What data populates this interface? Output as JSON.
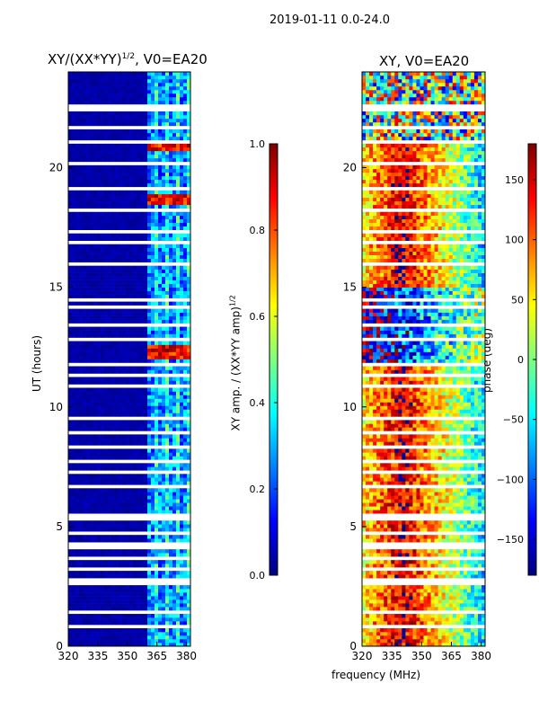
{
  "figure_title": "2019-01-11 0.0-24.0",
  "colors": {
    "jet": [
      "#00007f",
      "#0000ff",
      "#007fff",
      "#00ffff",
      "#7fff7f",
      "#ffff00",
      "#ff7f00",
      "#ff0000",
      "#7f0000"
    ],
    "gap": "#ffffff"
  },
  "chart_data": [
    {
      "type": "heatmap",
      "panel": "amplitude",
      "title": "XY/(XX*YY)",
      "title_superscript": "1/2",
      "title_suffix": ", V0=EA20",
      "xlabel": "frequency (MHz)",
      "ylabel": "UT (hours)",
      "xlim": [
        320,
        382
      ],
      "ylim": [
        0,
        24
      ],
      "xticks": [
        "320",
        "335",
        "350",
        "365",
        "380"
      ],
      "xtick_values": [
        320,
        335,
        350,
        365,
        380
      ],
      "yticks": [
        "0",
        "5",
        "10",
        "15",
        "20"
      ],
      "ytick_values": [
        0,
        5,
        10,
        15,
        20
      ],
      "colorbar": {
        "label": "XY amp. / (XX*YY amp)",
        "label_superscript": "1/2",
        "range": [
          0,
          1
        ],
        "ticks": [
          "0.0",
          "0.2",
          "0.4",
          "0.6",
          "0.8",
          "1.0"
        ],
        "tick_values": [
          0,
          0.2,
          0.4,
          0.6,
          0.8,
          1.0
        ]
      },
      "bright_band_mhz": [
        360,
        382
      ],
      "high_amplitude_events_ut": [
        12.3,
        20.9,
        18.7
      ],
      "flagged_ut_intervals": [
        [
          0.8,
          0.9
        ],
        [
          1.4,
          1.5
        ],
        [
          2.6,
          2.8
        ],
        [
          3.2,
          3.3
        ],
        [
          3.6,
          3.7
        ],
        [
          4.1,
          4.3
        ],
        [
          4.6,
          4.8
        ],
        [
          5.2,
          5.6
        ],
        [
          6.1,
          6.2
        ],
        [
          6.6,
          6.8
        ],
        [
          7.2,
          7.3
        ],
        [
          7.6,
          7.8
        ],
        [
          8.3,
          8.4
        ],
        [
          8.9,
          9.0
        ],
        [
          9.5,
          9.6
        ],
        [
          10.0,
          10.1
        ],
        [
          10.8,
          10.9
        ],
        [
          11.3,
          11.4
        ],
        [
          11.7,
          11.8
        ],
        [
          12.8,
          12.9
        ],
        [
          13.4,
          13.5
        ],
        [
          14.1,
          14.2
        ],
        [
          14.4,
          14.6
        ],
        [
          15.1,
          15.2
        ],
        [
          15.9,
          16.0
        ],
        [
          16.3,
          16.4
        ],
        [
          16.8,
          16.9
        ],
        [
          17.3,
          17.4
        ],
        [
          17.8,
          17.9
        ],
        [
          18.2,
          18.3
        ],
        [
          19.1,
          19.2
        ],
        [
          19.6,
          19.7
        ],
        [
          20.1,
          20.2
        ],
        [
          20.5,
          20.6
        ],
        [
          21.0,
          21.1
        ],
        [
          21.6,
          21.7
        ],
        [
          22.3,
          22.6
        ]
      ]
    },
    {
      "type": "heatmap",
      "panel": "phase",
      "title": "XY, V0=EA20",
      "xlabel": "frequency (MHz)",
      "ylabel": "",
      "xlim": [
        320,
        382
      ],
      "ylim": [
        0,
        24
      ],
      "xticks": [
        "320",
        "335",
        "350",
        "365",
        "380"
      ],
      "xtick_values": [
        320,
        335,
        350,
        365,
        380
      ],
      "yticks": [
        "0",
        "5",
        "10",
        "15",
        "20"
      ],
      "ytick_values": [
        0,
        5,
        10,
        15,
        20
      ],
      "colorbar": {
        "label": "phase (deg)",
        "range": [
          -180,
          180
        ],
        "ticks": [
          "−150",
          "−100",
          "−50",
          "0",
          "50",
          "100",
          "150"
        ],
        "tick_values": [
          -150,
          -100,
          -50,
          0,
          50,
          100,
          150
        ]
      },
      "dominant_phase_deg_at_335_mhz": 150,
      "flagged_ut_intervals": [
        [
          0.8,
          0.9
        ],
        [
          1.4,
          1.5
        ],
        [
          2.6,
          2.8
        ],
        [
          3.2,
          3.3
        ],
        [
          3.6,
          3.7
        ],
        [
          4.1,
          4.3
        ],
        [
          4.6,
          4.8
        ],
        [
          5.2,
          5.6
        ],
        [
          6.1,
          6.2
        ],
        [
          6.6,
          6.8
        ],
        [
          7.2,
          7.3
        ],
        [
          7.6,
          7.8
        ],
        [
          8.3,
          8.4
        ],
        [
          8.9,
          9.0
        ],
        [
          9.5,
          9.6
        ],
        [
          10.0,
          10.1
        ],
        [
          10.8,
          10.9
        ],
        [
          11.3,
          11.4
        ],
        [
          11.7,
          11.8
        ],
        [
          12.8,
          12.9
        ],
        [
          13.4,
          13.5
        ],
        [
          14.1,
          14.2
        ],
        [
          14.4,
          14.6
        ],
        [
          15.1,
          15.2
        ],
        [
          15.9,
          16.0
        ],
        [
          16.3,
          16.4
        ],
        [
          16.8,
          16.9
        ],
        [
          17.3,
          17.4
        ],
        [
          17.8,
          17.9
        ],
        [
          18.2,
          18.3
        ],
        [
          19.1,
          19.2
        ],
        [
          19.6,
          19.7
        ],
        [
          20.1,
          20.2
        ],
        [
          20.5,
          20.6
        ],
        [
          21.0,
          21.1
        ],
        [
          21.6,
          21.7
        ],
        [
          22.3,
          22.6
        ]
      ]
    }
  ]
}
